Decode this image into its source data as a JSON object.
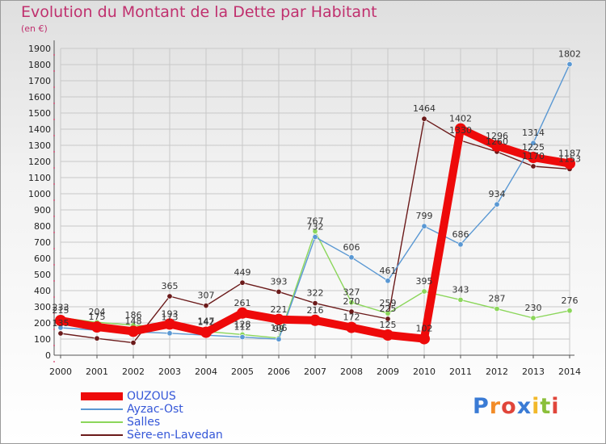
{
  "header": {
    "title": "Evolution du Montant de la Dette par Habitant",
    "subtitle": "(en €)"
  },
  "brand": {
    "text": "Proxiti",
    "letter_colors": [
      "#3a7bd5",
      "#f28c28",
      "#e0453a",
      "#3a7bd5",
      "#f2b82a",
      "#8bbf3a",
      "#e0453a"
    ]
  },
  "chart_data": {
    "type": "line",
    "x": [
      "2000",
      "2001",
      "2002",
      "2003",
      "2004",
      "2005",
      "2006",
      "2007",
      "2008",
      "2009",
      "2010",
      "2011",
      "2012",
      "2013",
      "2014"
    ],
    "ylim": [
      0,
      1900
    ],
    "yticks": [
      0,
      100,
      200,
      300,
      400,
      500,
      600,
      700,
      800,
      900,
      1000,
      1100,
      1200,
      1300,
      1400,
      1500,
      1600,
      1700,
      1800,
      1900
    ],
    "grid": true,
    "legend_position": "bottom-left",
    "series": [
      {
        "name": "Sère-en-Lavedan",
        "color": "#6b1a1a",
        "values": [
          135,
          104,
          77,
          365,
          307,
          449,
          393,
          322,
          270,
          225,
          1464,
          1330,
          1260,
          1170,
          1153
        ],
        "labels": [
          "135",
          "",
          "",
          "365",
          "307",
          "449",
          "393",
          "322",
          "270",
          "225",
          "1464",
          "1330",
          "1260",
          "1170",
          "1153"
        ]
      },
      {
        "name": "Salles",
        "color": "#8bd65a",
        "values": [
          233,
          204,
          186,
          173,
          147,
          128,
          106,
          767,
          327,
          259,
          395,
          343,
          287,
          230,
          276
        ],
        "labels": [
          "233",
          "204",
          "186",
          "173",
          "147",
          "128",
          "106",
          "767",
          "327",
          "259",
          "395",
          "343",
          "287",
          "230",
          "276"
        ]
      },
      {
        "name": "Ayzac-Ost",
        "color": "#5a98d3",
        "values": [
          170,
          155,
          145,
          136,
          124,
          112,
          99,
          732,
          606,
          461,
          799,
          686,
          934,
          1314,
          1802
        ],
        "labels": [
          "",
          "",
          "",
          "",
          "",
          "112",
          "99",
          "732",
          "606",
          "461",
          "799",
          "686",
          "934",
          "1314",
          "1802"
        ]
      },
      {
        "name": "OUZOUS",
        "color": "#ee0a0a",
        "values": [
          215,
          175,
          148,
          193,
          142,
          261,
          221,
          216,
          172,
          125,
          102,
          1402,
          1296,
          1225,
          1187
        ],
        "labels": [
          "215",
          "175",
          "148",
          "193",
          "142",
          "261",
          "221",
          "216",
          "172",
          "125",
          "102",
          "1402",
          "1296",
          "1225",
          "1187"
        ]
      }
    ]
  },
  "legend": {
    "items": [
      {
        "label": "OUZOUS",
        "color": "#ee0a0a",
        "thickness": 10
      },
      {
        "label": "Ayzac-Ost",
        "color": "#5a98d3",
        "thickness": 2
      },
      {
        "label": "Salles",
        "color": "#8bd65a",
        "thickness": 2
      },
      {
        "label": "Sère-en-Lavedan",
        "color": "#6b1a1a",
        "thickness": 2
      }
    ]
  }
}
